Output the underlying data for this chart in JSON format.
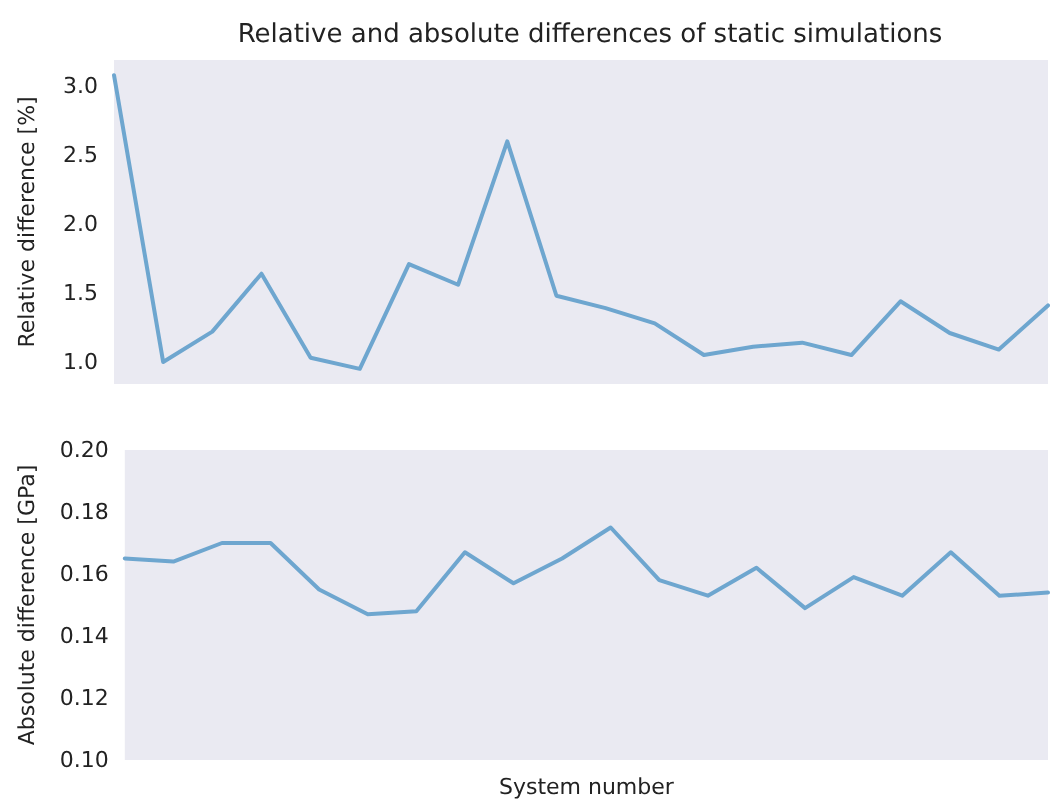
{
  "chart_data": [
    {
      "type": "line",
      "title": "Relative and absolute differences of static simulations",
      "ylabel": "Relative difference [%]",
      "categories": [
        null,
        null,
        null,
        null,
        null,
        null,
        null,
        null,
        null,
        null,
        null,
        null,
        null,
        null,
        null,
        null,
        null,
        null,
        null,
        null
      ],
      "series": [
        {
          "color": "#6ea6cf",
          "values": [
            3.08,
            1.0,
            1.22,
            1.64,
            1.03,
            0.95,
            1.71,
            1.56,
            2.6,
            1.48,
            1.39,
            1.28,
            1.05,
            1.11,
            1.14,
            1.05,
            1.44,
            1.21,
            1.09,
            1.41
          ]
        }
      ],
      "ylim": [
        0.84,
        3.19
      ],
      "yticks": [
        {
          "value": 1,
          "label": "1.0"
        },
        {
          "value": 1.5,
          "label": "1.5"
        },
        {
          "value": 2,
          "label": "2.0"
        },
        {
          "value": 2.5,
          "label": "2.5"
        },
        {
          "value": 3,
          "label": "3.0"
        }
      ],
      "tick_labels": "y",
      "grid": false
    },
    {
      "type": "line",
      "xlabel": "System number",
      "ylabel": "Absolute difference [GPa]",
      "categories": [
        null,
        null,
        null,
        null,
        null,
        null,
        null,
        null,
        null,
        null,
        null,
        null,
        null,
        null,
        null,
        null,
        null,
        null,
        null,
        null
      ],
      "series": [
        {
          "color": "#6ea6cf",
          "values": [
            0.165,
            0.164,
            0.17,
            0.17,
            0.155,
            0.147,
            0.148,
            0.167,
            0.157,
            0.165,
            0.175,
            0.158,
            0.153,
            0.162,
            0.149,
            0.159,
            0.153,
            0.167,
            0.153,
            0.154
          ]
        }
      ],
      "ylim": [
        0.1,
        0.2
      ],
      "yticks": [
        {
          "value": 0.1,
          "label": "0.10"
        },
        {
          "value": 0.12,
          "label": "0.12"
        },
        {
          "value": 0.14,
          "label": "0.14"
        },
        {
          "value": 0.16,
          "label": "0.16"
        },
        {
          "value": 0.18,
          "label": "0.18"
        },
        {
          "value": 0.2,
          "label": "0.20"
        }
      ],
      "tick_labels": "y",
      "grid": false
    }
  ]
}
